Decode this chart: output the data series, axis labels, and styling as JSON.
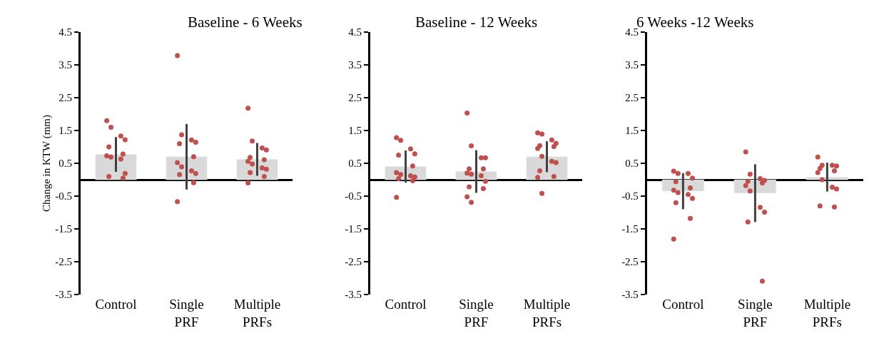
{
  "chart_data": [
    {
      "type": "bar",
      "title": "Baseline - 6 Weeks",
      "ylabel": "Change in KTW (mm)",
      "categories": [
        "Control",
        "Single\nPRF",
        "Multiple\nPRFs"
      ],
      "ylim": [
        -3.5,
        4.5
      ],
      "yticks": [
        -3.5,
        -2.5,
        -1.5,
        -0.5,
        0.5,
        1.5,
        2.5,
        3.5,
        4.5
      ],
      "series": [
        {
          "color": "#d9d9d9",
          "values": [
            0.77,
            0.7,
            0.62
          ],
          "errors": [
            0.53,
            1.0,
            0.5
          ]
        },
        {
          "type": "scatter",
          "color": "#c0504d",
          "marker": "circle",
          "x": [
            "Control",
            "Control",
            "Control",
            "Control",
            "Control",
            "Control",
            "Control",
            "Control",
            "Control",
            "Control",
            "Control",
            "Control",
            "Single\nPRF",
            "Single\nPRF",
            "Single\nPRF",
            "Single\nPRF",
            "Single\nPRF",
            "Single\nPRF",
            "Single\nPRF",
            "Single\nPRF",
            "Single\nPRF",
            "Single\nPRF",
            "Single\nPRF",
            "Single\nPRF",
            "Single\nPRF",
            "Multiple\nPRFs",
            "Multiple\nPRFs",
            "Multiple\nPRFs",
            "Multiple\nPRFs",
            "Multiple\nPRFs",
            "Multiple\nPRFs",
            "Multiple\nPRFs",
            "Multiple\nPRFs",
            "Multiple\nPRFs",
            "Multiple\nPRFs",
            "Multiple\nPRFs",
            "Multiple\nPRFs",
            "Multiple\nPRFs"
          ],
          "values": [
            1.8,
            1.6,
            1.33,
            1.22,
            1.0,
            0.78,
            0.73,
            0.69,
            0.63,
            0.19,
            0.1,
            0.05,
            3.78,
            1.37,
            1.21,
            1.14,
            1.1,
            0.7,
            0.52,
            0.39,
            0.27,
            0.19,
            0.16,
            -0.09,
            -0.67,
            2.18,
            1.18,
            0.97,
            0.91,
            0.68,
            0.61,
            0.56,
            0.48,
            0.36,
            0.32,
            0.22,
            0.1,
            -0.1
          ]
        }
      ]
    },
    {
      "type": "bar",
      "title": "Baseline - 12 Weeks",
      "categories": [
        "Control",
        "Single\nPRF",
        "Multiple\nPRFs"
      ],
      "ylim": [
        -3.5,
        4.5
      ],
      "yticks": [
        -3.5,
        -2.5,
        -1.5,
        -0.5,
        0.5,
        1.5,
        2.5,
        3.5,
        4.5
      ],
      "series": [
        {
          "color": "#d9d9d9",
          "values": [
            0.4,
            0.25,
            0.7
          ],
          "errors": [
            0.49,
            0.65,
            0.47
          ]
        },
        {
          "type": "scatter",
          "color": "#c0504d",
          "marker": "circle",
          "x": [
            "Control",
            "Control",
            "Control",
            "Control",
            "Control",
            "Control",
            "Control",
            "Control",
            "Control",
            "Control",
            "Control",
            "Control",
            "Control",
            "Single\nPRF",
            "Single\nPRF",
            "Single\nPRF",
            "Single\nPRF",
            "Single\nPRF",
            "Single\nPRF",
            "Single\nPRF",
            "Single\nPRF",
            "Single\nPRF",
            "Single\nPRF",
            "Single\nPRF",
            "Single\nPRF",
            "Single\nPRF",
            "Single\nPRF",
            "Multiple\nPRFs",
            "Multiple\nPRFs",
            "Multiple\nPRFs",
            "Multiple\nPRFs",
            "Multiple\nPRFs",
            "Multiple\nPRFs",
            "Multiple\nPRFs",
            "Multiple\nPRFs",
            "Multiple\nPRFs",
            "Multiple\nPRFs",
            "Multiple\nPRFs",
            "Multiple\nPRFs",
            "Multiple\nPRFs",
            "Multiple\nPRFs"
          ],
          "values": [
            1.28,
            1.2,
            0.94,
            0.79,
            0.75,
            0.42,
            0.22,
            0.16,
            0.12,
            0.08,
            0.03,
            -0.03,
            -0.54,
            2.03,
            1.03,
            0.67,
            0.67,
            0.33,
            0.33,
            0.2,
            0.17,
            0.12,
            -0.05,
            -0.22,
            -0.27,
            -0.52,
            -0.69,
            1.43,
            1.39,
            1.21,
            1.11,
            1.04,
            1.01,
            0.95,
            0.71,
            0.56,
            0.52,
            0.27,
            0.1,
            0.07,
            -0.42
          ]
        }
      ]
    },
    {
      "type": "bar",
      "title": "6 Weeks -12 Weeks",
      "categories": [
        "Control",
        "Single\nPRF",
        "Multiple\nPRFs"
      ],
      "ylim": [
        -3.5,
        4.5
      ],
      "yticks": [
        -3.5,
        -2.5,
        -1.5,
        -0.5,
        0.5,
        1.5,
        2.5,
        3.5,
        4.5
      ],
      "series": [
        {
          "color": "#d9d9d9",
          "values": [
            -0.35,
            -0.41,
            0.08
          ],
          "errors": [
            0.55,
            0.88,
            0.44
          ]
        },
        {
          "type": "scatter",
          "color": "#c0504d",
          "marker": "circle",
          "x": [
            "Control",
            "Control",
            "Control",
            "Control",
            "Control",
            "Control",
            "Control",
            "Control",
            "Control",
            "Control",
            "Control",
            "Control",
            "Control",
            "Single\nPRF",
            "Single\nPRF",
            "Single\nPRF",
            "Single\nPRF",
            "Single\nPRF",
            "Single\nPRF",
            "Single\nPRF",
            "Single\nPRF",
            "Single\nPRF",
            "Single\nPRF",
            "Single\nPRF",
            "Single\nPRF",
            "Multiple\nPRFs",
            "Multiple\nPRFs",
            "Multiple\nPRFs",
            "Multiple\nPRFs",
            "Multiple\nPRFs",
            "Multiple\nPRFs",
            "Multiple\nPRFs",
            "Multiple\nPRFs",
            "Multiple\nPRFs",
            "Multiple\nPRFs",
            "Multiple\nPRFs",
            "Multiple\nPRFs"
          ],
          "values": [
            0.26,
            0.19,
            0.19,
            0.05,
            -0.06,
            -0.25,
            -0.32,
            -0.39,
            -0.45,
            -0.57,
            -0.7,
            -1.18,
            -1.81,
            0.85,
            0.17,
            0.03,
            -0.02,
            -0.05,
            -0.1,
            -0.18,
            -0.34,
            -0.84,
            -0.99,
            -1.29,
            -3.09,
            0.69,
            0.44,
            0.44,
            0.42,
            0.34,
            0.27,
            0.22,
            0.0,
            -0.23,
            -0.28,
            -0.8,
            -0.83
          ]
        }
      ]
    }
  ]
}
